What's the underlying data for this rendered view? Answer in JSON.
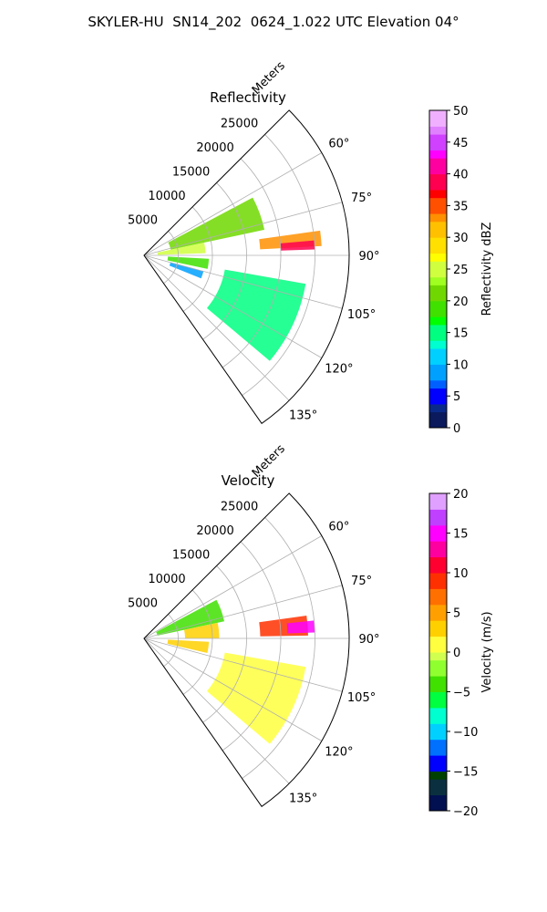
{
  "suptitle": "SKYLER-HU  SN14_202  0624_1.022 UTC Elevation 04°",
  "chart_data": [
    {
      "type": "polar-sector",
      "title": "Reflectivity",
      "radial_label": "Meters",
      "radial_ticks": [
        5000,
        10000,
        15000,
        20000,
        25000
      ],
      "rlim": [
        0,
        30000
      ],
      "angle_ticks": [
        "60°",
        "75°",
        "90°",
        "105°",
        "120°",
        "135°"
      ],
      "angle_tick_values": [
        60,
        75,
        90,
        105,
        120,
        135
      ],
      "theta_range_deg": [
        45,
        145
      ],
      "grid": true,
      "colorbar": {
        "label": "Reflectivity dBZ",
        "range": [
          0,
          50
        ],
        "ticks": [
          "0",
          "5",
          "10",
          "15",
          "20",
          "25",
          "30",
          "35",
          "40",
          "45",
          "50"
        ],
        "tick_values": [
          0,
          5,
          10,
          15,
          20,
          25,
          30,
          35,
          40,
          45,
          50
        ]
      },
      "echoes": [
        {
          "az": [
            62,
            78
          ],
          "r": [
            4000,
            18000
          ],
          "value": 20
        },
        {
          "az": [
            78,
            88
          ],
          "r": [
            2000,
            9000
          ],
          "value": 24
        },
        {
          "az": [
            82,
            87
          ],
          "r": [
            17000,
            26000
          ],
          "value": 32
        },
        {
          "az": [
            85,
            88
          ],
          "r": [
            20000,
            25000
          ],
          "value": 38
        },
        {
          "az": [
            93,
            102
          ],
          "r": [
            3500,
            9500
          ],
          "value": 18
        },
        {
          "az": [
            105,
            112
          ],
          "r": [
            4000,
            9000
          ],
          "value": 8
        },
        {
          "az": [
            100,
            130
          ],
          "r": [
            12000,
            24000
          ],
          "value": 14
        }
      ]
    },
    {
      "type": "polar-sector",
      "title": "Velocity",
      "radial_label": "Meters",
      "radial_ticks": [
        5000,
        10000,
        15000,
        20000,
        25000
      ],
      "rlim": [
        0,
        30000
      ],
      "angle_ticks": [
        "60°",
        "75°",
        "90°",
        "105°",
        "120°",
        "135°"
      ],
      "angle_tick_values": [
        60,
        75,
        90,
        105,
        120,
        135
      ],
      "theta_range_deg": [
        45,
        145
      ],
      "grid": true,
      "colorbar": {
        "label": "Velocity (m/s)",
        "range": [
          -20,
          20
        ],
        "ticks": [
          "−20",
          "−15",
          "−10",
          "−5",
          "0",
          "5",
          "10",
          "15",
          "20"
        ],
        "tick_values": [
          -20,
          -15,
          -10,
          -5,
          0,
          5,
          10,
          15,
          20
        ]
      },
      "echoes": [
        {
          "az": [
            62,
            78
          ],
          "r": [
            2000,
            12000
          ],
          "value": -4
        },
        {
          "az": [
            78,
            90
          ],
          "r": [
            6000,
            11000
          ],
          "value": 3
        },
        {
          "az": [
            82,
            89
          ],
          "r": [
            17000,
            24000
          ],
          "value": 8
        },
        {
          "az": [
            84,
            88
          ],
          "r": [
            21000,
            25000
          ],
          "value": 14
        },
        {
          "az": [
            93,
            103
          ],
          "r": [
            3500,
            9500
          ],
          "value": 2
        },
        {
          "az": [
            100,
            130
          ],
          "r": [
            12000,
            24000
          ],
          "value": 1
        }
      ]
    }
  ]
}
